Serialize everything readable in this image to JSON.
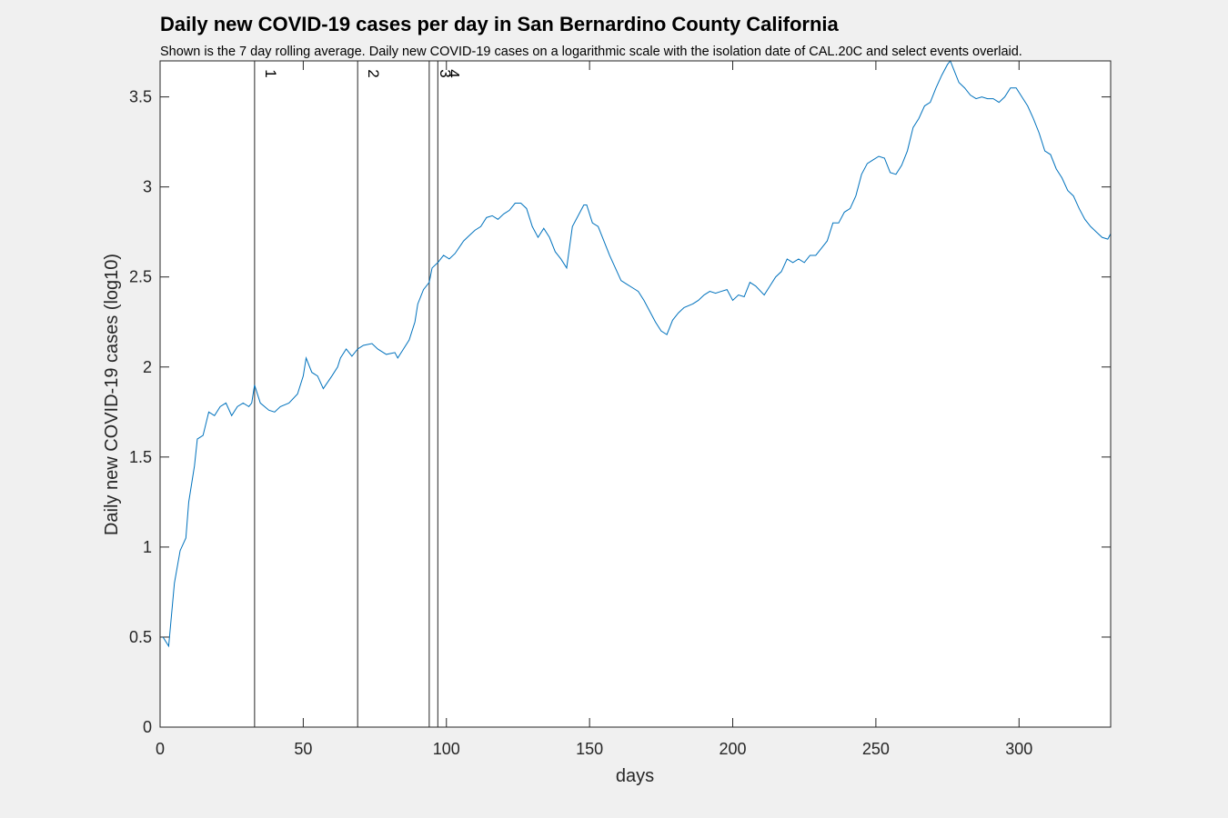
{
  "chart_data": {
    "type": "line",
    "title": "Daily new COVID-19 cases per day in San Bernardino County California",
    "subtitle": "Shown is the 7 day rolling average. Daily new COVID-19 cases on a logarithmic scale with the isolation date of CAL.20C and select events overlaid.",
    "x_label": "days",
    "y_label": "Daily new COVID-19 cases (log10)",
    "color": "#0072bd",
    "x": [
      1,
      3,
      5,
      7,
      9,
      10,
      12,
      13,
      15,
      17,
      19,
      21,
      23,
      25,
      27,
      29,
      31,
      32,
      33,
      35,
      38,
      40,
      42,
      45,
      48,
      50,
      51,
      53,
      55,
      57,
      60,
      62,
      63,
      65,
      67,
      69,
      71,
      74,
      76,
      79,
      82,
      83,
      85,
      87,
      89,
      90,
      92,
      94,
      95,
      97,
      99,
      101,
      103,
      106,
      108,
      110,
      112,
      114,
      116,
      118,
      120,
      122,
      124,
      126,
      128,
      130,
      132,
      134,
      136,
      138,
      140,
      142,
      144,
      146,
      148,
      149,
      151,
      153,
      155,
      157,
      159,
      161,
      163,
      165,
      167,
      169,
      171,
      173,
      175,
      177,
      179,
      181,
      183,
      186,
      188,
      190,
      192,
      194,
      196,
      198,
      200,
      202,
      204,
      206,
      208,
      211,
      213,
      215,
      217,
      219,
      221,
      223,
      225,
      227,
      229,
      231,
      233,
      235,
      237,
      239,
      241,
      243,
      245,
      247,
      249,
      251,
      253,
      255,
      257,
      259,
      261,
      263,
      265,
      267,
      269,
      271,
      273,
      275,
      276,
      277,
      279,
      281,
      283,
      285,
      287,
      289,
      291,
      293,
      295,
      297,
      299,
      301,
      303,
      305,
      307,
      309,
      311,
      313,
      315,
      317,
      319,
      321,
      323,
      325,
      327,
      329,
      331,
      332
    ],
    "values": [
      0.5,
      0.45,
      0.8,
      0.98,
      1.05,
      1.25,
      1.45,
      1.6,
      1.62,
      1.75,
      1.73,
      1.78,
      1.8,
      1.73,
      1.78,
      1.8,
      1.78,
      1.8,
      1.9,
      1.8,
      1.76,
      1.75,
      1.78,
      1.8,
      1.85,
      1.95,
      2.05,
      1.97,
      1.95,
      1.88,
      1.95,
      2.0,
      2.05,
      2.1,
      2.06,
      2.1,
      2.12,
      2.13,
      2.1,
      2.07,
      2.08,
      2.05,
      2.1,
      2.15,
      2.25,
      2.35,
      2.43,
      2.47,
      2.55,
      2.58,
      2.62,
      2.6,
      2.63,
      2.7,
      2.73,
      2.76,
      2.78,
      2.83,
      2.84,
      2.82,
      2.85,
      2.87,
      2.91,
      2.91,
      2.88,
      2.78,
      2.72,
      2.77,
      2.72,
      2.64,
      2.6,
      2.55,
      2.78,
      2.84,
      2.9,
      2.9,
      2.8,
      2.78,
      2.7,
      2.62,
      2.55,
      2.48,
      2.46,
      2.44,
      2.42,
      2.37,
      2.31,
      2.25,
      2.2,
      2.18,
      2.26,
      2.3,
      2.33,
      2.35,
      2.37,
      2.4,
      2.42,
      2.41,
      2.42,
      2.43,
      2.37,
      2.4,
      2.39,
      2.47,
      2.45,
      2.4,
      2.45,
      2.5,
      2.53,
      2.6,
      2.58,
      2.6,
      2.58,
      2.62,
      2.62,
      2.66,
      2.7,
      2.8,
      2.8,
      2.86,
      2.88,
      2.95,
      3.07,
      3.13,
      3.15,
      3.17,
      3.16,
      3.08,
      3.07,
      3.12,
      3.2,
      3.33,
      3.38,
      3.45,
      3.47,
      3.55,
      3.62,
      3.68,
      3.7,
      3.66,
      3.58,
      3.55,
      3.51,
      3.49,
      3.5,
      3.49,
      3.49,
      3.47,
      3.5,
      3.55,
      3.55,
      3.5,
      3.45,
      3.38,
      3.3,
      3.2,
      3.18,
      3.1,
      3.05,
      2.98,
      2.95,
      2.88,
      2.82,
      2.78,
      2.75,
      2.72,
      2.71,
      2.74
    ],
    "events": [
      {
        "x": 33,
        "label": "1"
      },
      {
        "x": 69,
        "label": "2"
      },
      {
        "x": 94,
        "label": "3"
      },
      {
        "x": 97,
        "label": "4"
      }
    ],
    "xlim": [
      0,
      332
    ],
    "ylim": [
      0,
      3.7
    ],
    "xticks": [
      0,
      50,
      100,
      150,
      200,
      250,
      300
    ],
    "yticks": [
      0,
      0.5,
      1,
      1.5,
      2,
      2.5,
      3,
      3.5
    ]
  }
}
